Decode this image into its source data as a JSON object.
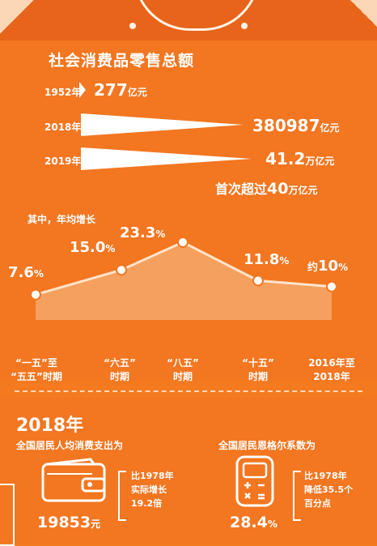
{
  "title": "社会消费品零售总额",
  "retail_totals": [
    {
      "year": "1952年",
      "value": "277",
      "unit": "亿元"
    },
    {
      "year": "2018年",
      "value": "380987",
      "unit": "亿元"
    },
    {
      "year": "2019年",
      "value": "41.2",
      "unit": "万亿元"
    }
  ],
  "headline": {
    "pre": "首次超过",
    "num": "40",
    "unit": "万亿元"
  },
  "growth_subtitle": "其中，年均增长",
  "chart_data": {
    "type": "area",
    "categories": [
      "“一五”至“五五”时期",
      "“六五”时期",
      "“八五”时期",
      "“十五”时期",
      "2016年至2018年"
    ],
    "values": [
      7.6,
      15.0,
      23.3,
      11.8,
      10
    ],
    "value_labels": [
      {
        "pre": "",
        "v": "7.6",
        "p": "%"
      },
      {
        "pre": "",
        "v": "15.0",
        "p": "%"
      },
      {
        "pre": "",
        "v": "23.3",
        "p": "%"
      },
      {
        "pre": "",
        "v": "11.8",
        "p": "%"
      },
      {
        "pre": "约",
        "v": "10",
        "p": "%"
      }
    ],
    "category_lines": [
      [
        "“一五”至",
        "“五五”时期"
      ],
      [
        "“六五”",
        "时期"
      ],
      [
        "“八五”",
        "时期"
      ],
      [
        "“十五”",
        "时期"
      ],
      [
        "2016年至",
        "2018年"
      ]
    ],
    "ylim": [
      0,
      25
    ],
    "fill_color": "#f5a05e",
    "line_color": "#ffe4cc",
    "point_color": "#ffffff"
  },
  "section2": {
    "year": "2018年",
    "consumption": {
      "caption": "全国居民人均消费支出为",
      "value": "19853",
      "unit": "元",
      "note": [
        "比1978年",
        "实际增长",
        "19.2倍"
      ],
      "icon": "wallet-icon"
    },
    "engel": {
      "caption": "全国居民恩格尔系数为",
      "value": "28.4",
      "unit": "%",
      "note": [
        "比1978年",
        "降低35.5个",
        "百分点"
      ],
      "icon": "calculator-icon"
    }
  },
  "colors": {
    "background": "#f47a1f",
    "text": "#ffffff",
    "accent_light": "#fbd7b5"
  }
}
